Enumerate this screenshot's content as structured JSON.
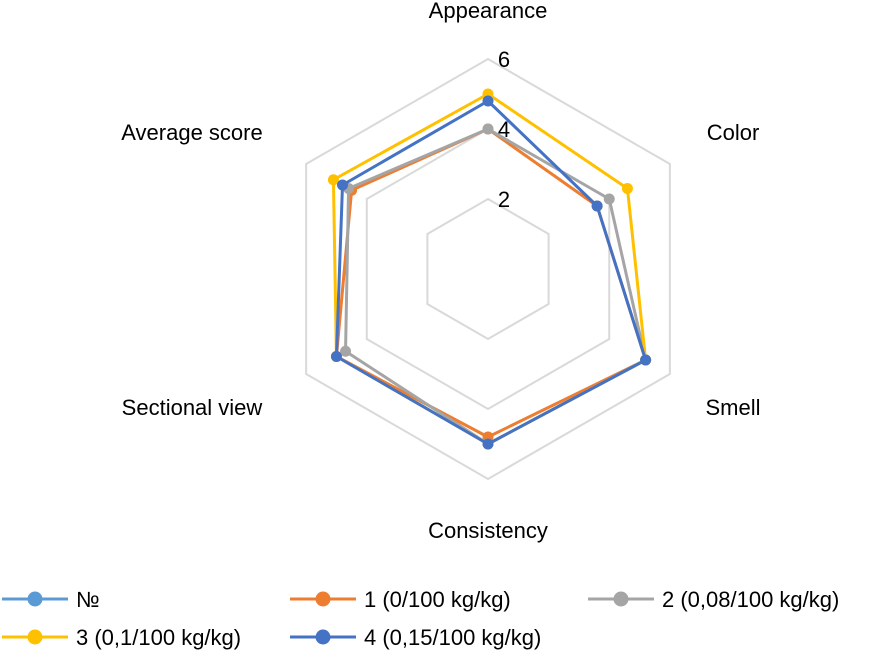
{
  "chart_data": {
    "type": "radar",
    "axes": [
      "Appearance",
      "Color",
      "Smell",
      "Consistency",
      "Sectional view",
      "Average score"
    ],
    "rlim": [
      0,
      6
    ],
    "ticks": [
      "2",
      "4",
      "6"
    ],
    "tick_values": [
      2,
      4,
      6
    ],
    "grid": true,
    "legend_position": "bottom",
    "series": [
      {
        "name": "№",
        "color": "#5B9BD5",
        "values": []
      },
      {
        "name": "1 (0/100 kg/kg)",
        "color": "#ED7D31",
        "values": [
          4.0,
          3.6,
          5.2,
          4.8,
          5.0,
          4.5
        ]
      },
      {
        "name": "2 (0,08/100 kg/kg)",
        "color": "#A5A5A5",
        "values": [
          4.0,
          4.0,
          5.2,
          5.0,
          4.7,
          4.6
        ]
      },
      {
        "name": "3 (0,1/100 kg/kg)",
        "color": "#FFC000",
        "values": [
          5.0,
          4.6,
          5.2,
          5.0,
          5.0,
          5.1
        ]
      },
      {
        "name": "4 (0,15/100 kg/kg)",
        "color": "#4472C4",
        "values": [
          4.8,
          3.6,
          5.2,
          5.0,
          5.0,
          4.8
        ]
      }
    ]
  }
}
